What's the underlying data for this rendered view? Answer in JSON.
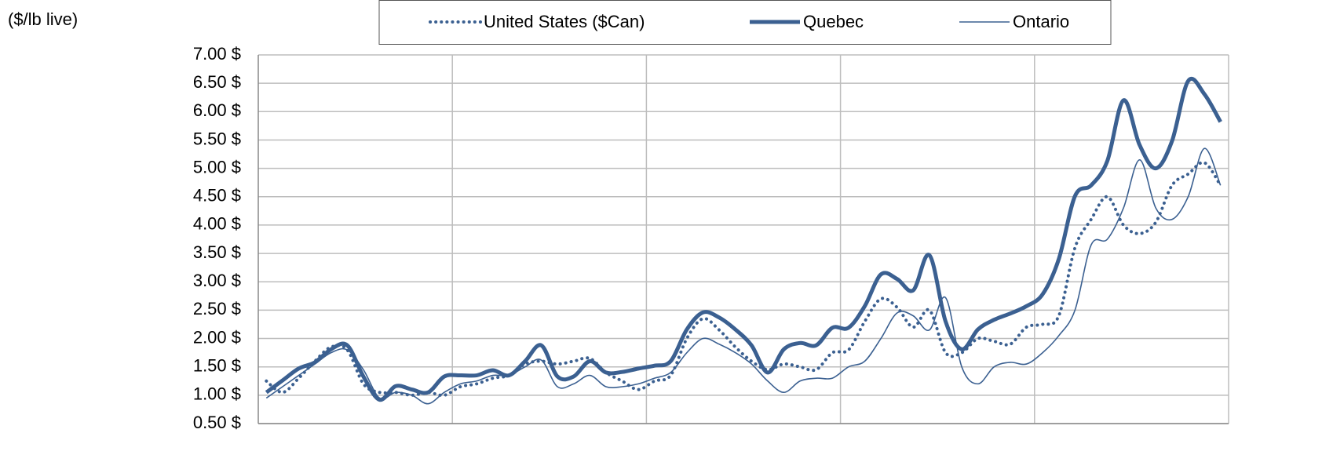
{
  "chart_data": {
    "type": "line",
    "y_label": "($/lb live)",
    "categories": [
      null,
      null,
      null,
      null,
      null,
      null,
      null,
      null,
      null,
      null,
      null,
      null,
      null,
      null,
      null,
      null,
      null,
      null,
      null,
      null,
      null,
      null,
      null,
      null,
      null,
      null,
      null,
      null,
      null,
      null,
      null,
      null,
      null,
      null,
      null,
      null,
      null,
      null,
      null,
      null,
      null,
      null,
      null,
      null,
      null,
      null,
      null,
      null,
      null,
      null,
      null,
      null,
      null,
      null,
      null,
      null,
      null,
      null,
      null,
      null
    ],
    "ylim": [
      0.5,
      7
    ],
    "yticks": [
      {
        "value": 0.5,
        "label": "0.50 $"
      },
      {
        "value": 1,
        "label": "1.00 $"
      },
      {
        "value": 1.5,
        "label": "1.50 $"
      },
      {
        "value": 2,
        "label": "2.00 $"
      },
      {
        "value": 2.5,
        "label": "2.50 $"
      },
      {
        "value": 3,
        "label": "3.00 $"
      },
      {
        "value": 3.5,
        "label": "3.50 $"
      },
      {
        "value": 4,
        "label": "4.00 $"
      },
      {
        "value": 4.5,
        "label": "4.50 $"
      },
      {
        "value": 5,
        "label": "5.00 $"
      },
      {
        "value": 5.5,
        "label": "5.50 $"
      },
      {
        "value": 6,
        "label": "6.00 $"
      },
      {
        "value": 6.5,
        "label": "6.50 $"
      },
      {
        "value": 7,
        "label": "7.00 $"
      }
    ],
    "grid": true,
    "legend": "top",
    "series": [
      {
        "name": "United States ($Can)",
        "color": "#3b6091",
        "line_style": "dotted",
        "line_width": 4,
        "values": [
          1.25,
          1.05,
          1.3,
          1.6,
          1.85,
          1.8,
          1.2,
          1.05,
          1.05,
          1.0,
          1.05,
          1.0,
          1.15,
          1.2,
          1.3,
          1.35,
          1.55,
          1.6,
          1.55,
          1.6,
          1.65,
          1.4,
          1.25,
          1.1,
          1.25,
          1.35,
          2.0,
          2.35,
          2.15,
          1.85,
          1.6,
          1.45,
          1.55,
          1.5,
          1.45,
          1.75,
          1.8,
          2.3,
          2.7,
          2.55,
          2.2,
          2.5,
          1.75,
          1.75,
          2.0,
          1.95,
          1.9,
          2.2,
          2.25,
          2.4,
          3.6,
          4.1,
          4.5,
          4.0,
          3.85,
          4.05,
          4.7,
          4.9,
          5.1,
          4.7
        ]
      },
      {
        "name": "Quebec",
        "color": "#3b6091",
        "line_style": "solid",
        "line_width": 5,
        "values": [
          1.05,
          1.26,
          1.47,
          1.58,
          1.81,
          1.88,
          1.33,
          0.92,
          1.16,
          1.1,
          1.05,
          1.33,
          1.35,
          1.35,
          1.44,
          1.35,
          1.6,
          1.88,
          1.33,
          1.33,
          1.6,
          1.4,
          1.41,
          1.47,
          1.52,
          1.6,
          2.16,
          2.46,
          2.37,
          2.16,
          1.88,
          1.4,
          1.81,
          1.92,
          1.88,
          2.19,
          2.19,
          2.57,
          3.13,
          3.05,
          2.85,
          3.47,
          2.3,
          1.81,
          2.16,
          2.33,
          2.44,
          2.57,
          2.78,
          3.4,
          4.51,
          4.7,
          5.13,
          6.2,
          5.41,
          5.0,
          5.48,
          6.54,
          6.31,
          5.82
        ]
      },
      {
        "name": "Ontario",
        "color": "#3b6091",
        "line_style": "solid",
        "line_width": 1.6,
        "values": [
          0.95,
          1.15,
          1.35,
          1.55,
          1.75,
          1.8,
          1.45,
          0.95,
          1.05,
          1.0,
          0.85,
          1.05,
          1.2,
          1.25,
          1.35,
          1.35,
          1.5,
          1.62,
          1.15,
          1.2,
          1.35,
          1.15,
          1.15,
          1.2,
          1.3,
          1.4,
          1.75,
          2.0,
          1.9,
          1.75,
          1.55,
          1.25,
          1.05,
          1.25,
          1.3,
          1.3,
          1.5,
          1.6,
          2.0,
          2.45,
          2.4,
          2.15,
          2.72,
          1.5,
          1.2,
          1.5,
          1.58,
          1.55,
          1.75,
          2.05,
          2.5,
          3.65,
          3.75,
          4.3,
          5.15,
          4.3,
          4.1,
          4.5,
          5.35,
          4.7
        ]
      }
    ]
  }
}
